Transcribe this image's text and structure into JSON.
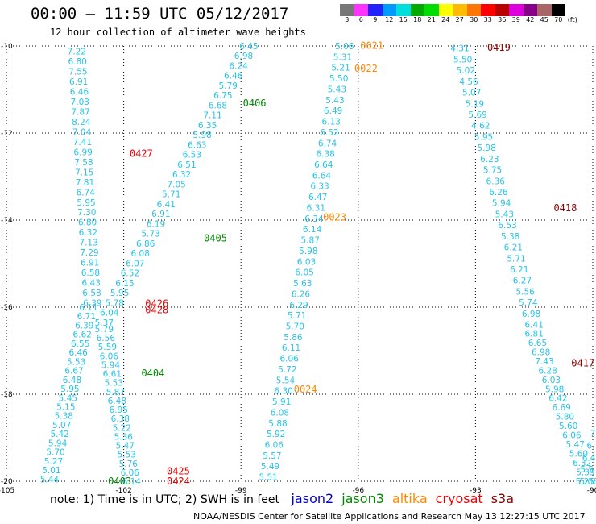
{
  "header": {
    "title": "00:00 – 11:59 UTC 05/12/2017",
    "subtitle": "12 hour collection of altimeter wave heights"
  },
  "color_scale": {
    "unit": "(ft)",
    "bins": [
      {
        "label": "3",
        "color": "#777777"
      },
      {
        "label": "6",
        "color": "#ff33ff"
      },
      {
        "label": "9",
        "color": "#2222ff"
      },
      {
        "label": "12",
        "color": "#0099ff"
      },
      {
        "label": "15",
        "color": "#00dddd"
      },
      {
        "label": "18",
        "color": "#00aa00"
      },
      {
        "label": "21",
        "color": "#00dd00"
      },
      {
        "label": "24",
        "color": "#ffff00"
      },
      {
        "label": "27",
        "color": "#ffbb00"
      },
      {
        "label": "30",
        "color": "#ff7700"
      },
      {
        "label": "33",
        "color": "#ff0000"
      },
      {
        "label": "36",
        "color": "#bb0000"
      },
      {
        "label": "39",
        "color": "#dd00dd"
      },
      {
        "label": "42",
        "color": "#880088"
      },
      {
        "label": "45",
        "color": "#aa6666"
      },
      {
        "label": "70",
        "color": "#000000"
      }
    ]
  },
  "axes": {
    "lat_labels": [
      "-10",
      "-12",
      "-14",
      "-16",
      "-18",
      "-20"
    ],
    "lon_labels": [
      "-105",
      "-102",
      "-99",
      "-96",
      "-93",
      "-90"
    ]
  },
  "swaths": [
    {
      "color": "#29c3e6",
      "lon0": -103.2,
      "lat0": -10.12,
      "lon1": -102.8,
      "lat1": -15.9,
      "values": [
        "7.22",
        "6.80",
        "7.55",
        "6.91",
        "6.46",
        "7.03",
        "7.87",
        "8.24",
        "7.04",
        "7.41",
        "6.99",
        "7.58",
        "7.15",
        "7.81",
        "6.74",
        "5.95",
        "7.30",
        "6.80",
        "6.32",
        "7.13",
        "7.29",
        "6.91",
        "6.58",
        "6.43",
        "6.58",
        "6.39"
      ]
    },
    {
      "color": "#29c3e6",
      "lon0": -102.9,
      "lat0": -16.0,
      "lon1": -103.9,
      "lat1": -19.95,
      "values": [
        "6.11",
        "6.71",
        "6.39",
        "6.62",
        "6.55",
        "6.46",
        "5.53",
        "6.67",
        "6.48",
        "5.95",
        "5.45",
        "5.15",
        "5.38",
        "5.07",
        "5.42",
        "5.94",
        "5.70",
        "5.27",
        "5.01",
        "5.44"
      ]
    },
    {
      "color": "#29c3e6",
      "lon0": -98.8,
      "lat0": -10.0,
      "lon1": -102.5,
      "lat1": -16.35,
      "values": [
        "6.45",
        "6.98",
        "6.24",
        "6.46",
        "5.79",
        "6.75",
        "6.68",
        "7.11",
        "6.35",
        "5.98",
        "6.63",
        "6.53",
        "6.51",
        "6.32",
        "7.05",
        "5.71",
        "6.41",
        "6.91",
        "6.19",
        "5.73",
        "6.86",
        "6.08",
        "6.07",
        "6.52",
        "6.15",
        "5.95",
        "5.78",
        "6.04",
        "5.37"
      ]
    },
    {
      "color": "#29c3e6",
      "lon0": -102.5,
      "lat0": -16.5,
      "lon1": -101.8,
      "lat1": -20.0,
      "values": [
        "5.79",
        "6.56",
        "5.59",
        "6.06",
        "5.94",
        "6.61",
        "5.53",
        "5.87",
        "6.48",
        "6.95",
        "6.38",
        "5.22",
        "5.36",
        "5.47",
        "5.53",
        "5.76",
        "6.06",
        "6.14"
      ]
    },
    {
      "color": "#29c3e6",
      "lon0": -96.35,
      "lat0": -10.0,
      "lon1": -98.3,
      "lat1": -19.9,
      "values": [
        "5.06",
        "5.31",
        "5.21",
        "5.50",
        "5.43",
        "5.43",
        "6.49",
        "6.13",
        "6.52",
        "6.74",
        "6.38",
        "6.64",
        "6.64",
        "6.33",
        "6.47",
        "6.31",
        "6.34",
        "6.14",
        "5.87",
        "5.98",
        "6.03",
        "6.05",
        "5.63",
        "6.26",
        "6.29",
        "5.71",
        "5.70",
        "5.86",
        "6.11",
        "6.06",
        "5.72",
        "5.54",
        "6.30",
        "5.91",
        "6.08",
        "5.88",
        "5.92",
        "6.06",
        "5.57",
        "5.49",
        "5.51"
      ]
    },
    {
      "color": "#29c3e6",
      "lon0": -93.4,
      "lat0": -10.05,
      "lon1": -91.5,
      "lat1": -16.4,
      "values": [
        "4.31",
        "5.50",
        "5.02",
        "4.56",
        "5.07",
        "5.19",
        "5.69",
        "4.62",
        "5.95",
        "5.98",
        "6.23",
        "5.75",
        "6.36",
        "6.26",
        "5.94",
        "5.43",
        "6.53",
        "5.38",
        "6.21",
        "5.71",
        "6.21",
        "6.27",
        "5.56",
        "5.74",
        "6.98",
        "6.41"
      ]
    },
    {
      "color": "#29c3e6",
      "lon0": -91.5,
      "lat0": -16.6,
      "lon1": -90.1,
      "lat1": -20.0,
      "values": [
        "6.81",
        "6.65",
        "6.98",
        "7.43",
        "6.28",
        "6.03",
        "5.98",
        "6.42",
        "6.69",
        "5.80",
        "5.60",
        "6.06",
        "5.47",
        "5.60",
        "6.32",
        "5.39",
        "5.06"
      ]
    },
    {
      "color": "#29c3e6",
      "lon0": -90.0,
      "lat0": -18.9,
      "lon1": -90.2,
      "lat1": -20.0,
      "values": [
        "7",
        "6.",
        "6.4",
        "5.5",
        "5.25"
      ]
    }
  ],
  "passes": [
    {
      "label": "0427",
      "color": "#ee0000",
      "lon": -101.85,
      "lat": -12.45
    },
    {
      "label": "0426",
      "color": "#ee0000",
      "lon": -101.45,
      "lat": -15.9
    },
    {
      "label": "0428",
      "color": "#ee0000",
      "lon": -101.45,
      "lat": -16.05
    },
    {
      "label": "0425",
      "color": "#ee0000",
      "lon": -100.9,
      "lat": -19.75
    },
    {
      "label": "0424",
      "color": "#ee0000",
      "lon": -100.9,
      "lat": -19.98
    },
    {
      "label": "0406",
      "color": "#008800",
      "lon": -98.95,
      "lat": -11.3
    },
    {
      "label": "0405",
      "color": "#008800",
      "lon": -99.95,
      "lat": -14.4
    },
    {
      "label": "0404",
      "color": "#008800",
      "lon": -101.55,
      "lat": -17.5
    },
    {
      "label": "0403",
      "color": "#008800",
      "lon": -102.4,
      "lat": -19.98
    },
    {
      "label": "0021",
      "color": "#ff8800",
      "lon": -95.95,
      "lat": -9.97
    },
    {
      "label": "0022",
      "color": "#ff8800",
      "lon": -96.1,
      "lat": -10.5
    },
    {
      "label": "0023",
      "color": "#ff8800",
      "lon": -96.9,
      "lat": -13.92
    },
    {
      "label": "0024",
      "color": "#ff8800",
      "lon": -97.65,
      "lat": -17.87
    },
    {
      "label": "0419",
      "color": "#880000",
      "lon": -92.7,
      "lat": -10.02
    },
    {
      "label": "0418",
      "color": "#880000",
      "lon": -91.0,
      "lat": -13.7
    },
    {
      "label": "0417",
      "color": "#880000",
      "lon": -90.55,
      "lat": -17.27
    }
  ],
  "footer": {
    "note": "note: 1) Time is in UTC; 2) SWH is in feet",
    "satellites": [
      {
        "name": "jason2",
        "color": "#0000cc"
      },
      {
        "name": "jason3",
        "color": "#008800"
      },
      {
        "name": "altika",
        "color": "#ff8800"
      },
      {
        "name": "cryosat",
        "color": "#ee0000"
      },
      {
        "name": "s3a",
        "color": "#880000"
      }
    ],
    "credit": "NOAA/NESDIS Center for Satellite Applications and Research    May 13 12:27:15 UTC 2017"
  }
}
